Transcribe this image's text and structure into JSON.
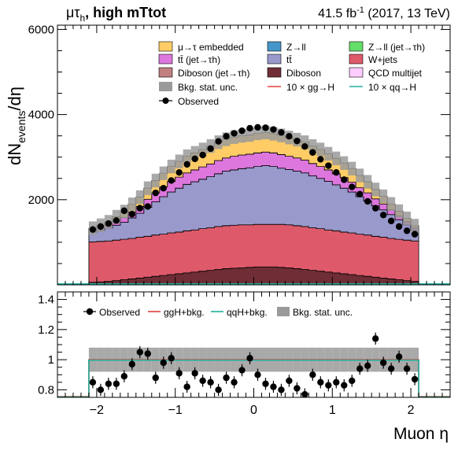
{
  "header": {
    "channel_prefix": "μτ",
    "channel_sub": "h",
    "channel_suffix": ", high mTtot",
    "lumi_value": "41.5 fb",
    "lumi_sup": "-1",
    "lumi_detail": " (2017, 13 TeV)"
  },
  "colors": {
    "embedded": "#ffcc66",
    "zll": "#4496c8",
    "zll_jet": "#64de6a",
    "ttbar_jet": "#dd77dd",
    "ttbar": "#9999cc",
    "wjets": "#de5a6a",
    "diboson_jet": "#c08080",
    "diboson": "#6f2d35",
    "qcd": "#ffccff",
    "stat_unc": "#9a9a9a",
    "ggh_line": "#e0403a",
    "qqh_line": "#20b09a",
    "observed": "#000000"
  },
  "chart_data": [
    {
      "type": "area",
      "ylabel_main": "dN",
      "ylabel_sub": "events",
      "ylabel_end": "/dη",
      "yticks": [
        "2000",
        "4000",
        "6000"
      ],
      "ylim": [
        0,
        6100
      ],
      "xlim": [
        -2.5,
        2.5
      ],
      "legend": [
        {
          "key": "embedded",
          "label": "μ→τ embedded",
          "style": "box"
        },
        {
          "key": "zll",
          "label": "Z→ll",
          "style": "box"
        },
        {
          "key": "zll_jet",
          "label": "Z→ll (jet→τh)",
          "style": "box"
        },
        {
          "key": "ttbar_jet",
          "label": "tt̄ (jet→τh)",
          "style": "box"
        },
        {
          "key": "ttbar",
          "label": "tt̄",
          "style": "box"
        },
        {
          "key": "wjets",
          "label": "W+jets",
          "style": "box"
        },
        {
          "key": "diboson_jet",
          "label": "Diboson (jet→τh)",
          "style": "box"
        },
        {
          "key": "diboson",
          "label": "Diboson",
          "style": "box"
        },
        {
          "key": "qcd",
          "label": "QCD multijet",
          "style": "box"
        },
        {
          "key": "stat_unc",
          "label": "Bkg. stat. unc.",
          "style": "box"
        },
        {
          "key": "ggh_line",
          "label": "10 × gg→H",
          "style": "line"
        },
        {
          "key": "qqh_line",
          "label": "10 × qq→H",
          "style": "line"
        },
        {
          "key": "observed",
          "label": "Observed",
          "style": "marker"
        }
      ],
      "bin_edges": [
        -2.1,
        -2.0,
        -1.9,
        -1.8,
        -1.7,
        -1.6,
        -1.5,
        -1.4,
        -1.3,
        -1.2,
        -1.1,
        -1.0,
        -0.9,
        -0.8,
        -0.7,
        -0.6,
        -0.5,
        -0.4,
        -0.3,
        -0.2,
        -0.1,
        0.0,
        0.1,
        0.2,
        0.3,
        0.4,
        0.5,
        0.6,
        0.7,
        0.8,
        0.9,
        1.0,
        1.1,
        1.2,
        1.3,
        1.4,
        1.5,
        1.6,
        1.7,
        1.8,
        1.9,
        2.0,
        2.1
      ],
      "stack_order": [
        "diboson",
        "wjets",
        "ttbar",
        "ttbar_jet",
        "embedded"
      ],
      "series": [
        {
          "key": "diboson",
          "values": [
            60,
            70,
            80,
            100,
            120,
            140,
            160,
            180,
            200,
            220,
            240,
            260,
            280,
            300,
            320,
            340,
            360,
            380,
            390,
            400,
            410,
            420,
            420,
            420,
            410,
            400,
            380,
            360,
            340,
            320,
            300,
            280,
            260,
            240,
            220,
            200,
            180,
            160,
            140,
            120,
            100,
            80
          ]
        },
        {
          "key": "wjets",
          "values": [
            950,
            950,
            950,
            950,
            950,
            950,
            960,
            960,
            970,
            970,
            980,
            980,
            990,
            990,
            1000,
            1000,
            1010,
            1010,
            1010,
            1010,
            1000,
            1000,
            1000,
            1000,
            1010,
            1010,
            1010,
            1010,
            1000,
            1000,
            990,
            990,
            980,
            980,
            970,
            970,
            960,
            960,
            950,
            950,
            950,
            950
          ]
        },
        {
          "key": "ttbar",
          "values": [
            230,
            260,
            300,
            350,
            400,
            480,
            560,
            680,
            780,
            880,
            960,
            1030,
            1090,
            1130,
            1160,
            1200,
            1240,
            1280,
            1300,
            1320,
            1340,
            1360,
            1380,
            1360,
            1320,
            1300,
            1280,
            1260,
            1220,
            1180,
            1140,
            1080,
            1030,
            960,
            880,
            800,
            720,
            640,
            560,
            460,
            360,
            260
          ]
        },
        {
          "key": "ttbar_jet",
          "values": [
            50,
            60,
            70,
            90,
            110,
            140,
            160,
            190,
            210,
            230,
            250,
            260,
            270,
            280,
            290,
            300,
            310,
            310,
            320,
            320,
            320,
            320,
            320,
            320,
            320,
            310,
            310,
            300,
            290,
            280,
            270,
            260,
            250,
            230,
            210,
            190,
            160,
            140,
            110,
            90,
            70,
            50
          ]
        },
        {
          "key": "embedded",
          "values": [
            40,
            60,
            80,
            110,
            140,
            180,
            220,
            260,
            290,
            320,
            350,
            370,
            390,
            400,
            410,
            420,
            430,
            440,
            450,
            450,
            450,
            460,
            460,
            450,
            450,
            440,
            430,
            420,
            410,
            400,
            380,
            360,
            340,
            320,
            290,
            260,
            220,
            180,
            140,
            110,
            80,
            50
          ]
        }
      ],
      "stat_unc_band": 160,
      "observed": [
        1300,
        1370,
        1440,
        1510,
        1740,
        1660,
        1800,
        1840,
        2160,
        2270,
        2450,
        2640,
        2830,
        2960,
        3050,
        3200,
        3370,
        3490,
        3560,
        3620,
        3680,
        3700,
        3690,
        3650,
        3580,
        3490,
        3380,
        3250,
        3110,
        2950,
        2800,
        2640,
        2470,
        2300,
        2130,
        1960,
        1800,
        1640,
        1500,
        1370,
        1270,
        1190
      ]
    },
    {
      "type": "line",
      "ylabel": "",
      "xlabel": "Muon η",
      "xticks": [
        "−2",
        "−1",
        "0",
        "1",
        "2"
      ],
      "yticks": [
        "0.8",
        "1",
        "1.2",
        "1.4"
      ],
      "ylim": [
        0.75,
        1.45
      ],
      "legend": [
        {
          "key": "observed",
          "label": "Observed",
          "style": "marker"
        },
        {
          "key": "ggh_line",
          "label": "ggH+bkg.",
          "style": "line"
        },
        {
          "key": "qqh_line",
          "label": "qqH+bkg.",
          "style": "line"
        },
        {
          "key": "stat_unc",
          "label": "Bkg. stat. unc.",
          "style": "box"
        }
      ],
      "ratio": [
        0.85,
        0.8,
        0.84,
        0.84,
        0.89,
        0.97,
        1.05,
        1.04,
        0.88,
        0.98,
        1.01,
        0.91,
        0.82,
        0.91,
        0.86,
        0.85,
        0.8,
        0.88,
        0.85,
        0.93,
        1.01,
        0.9,
        0.84,
        0.82,
        0.8,
        0.86,
        0.81,
        0.77,
        0.9,
        0.85,
        0.83,
        0.85,
        0.83,
        0.86,
        0.94,
        0.96,
        1.14,
        0.98,
        0.94,
        1.02,
        0.94,
        0.87
      ],
      "ratio_unc_band": 0.08
    }
  ]
}
